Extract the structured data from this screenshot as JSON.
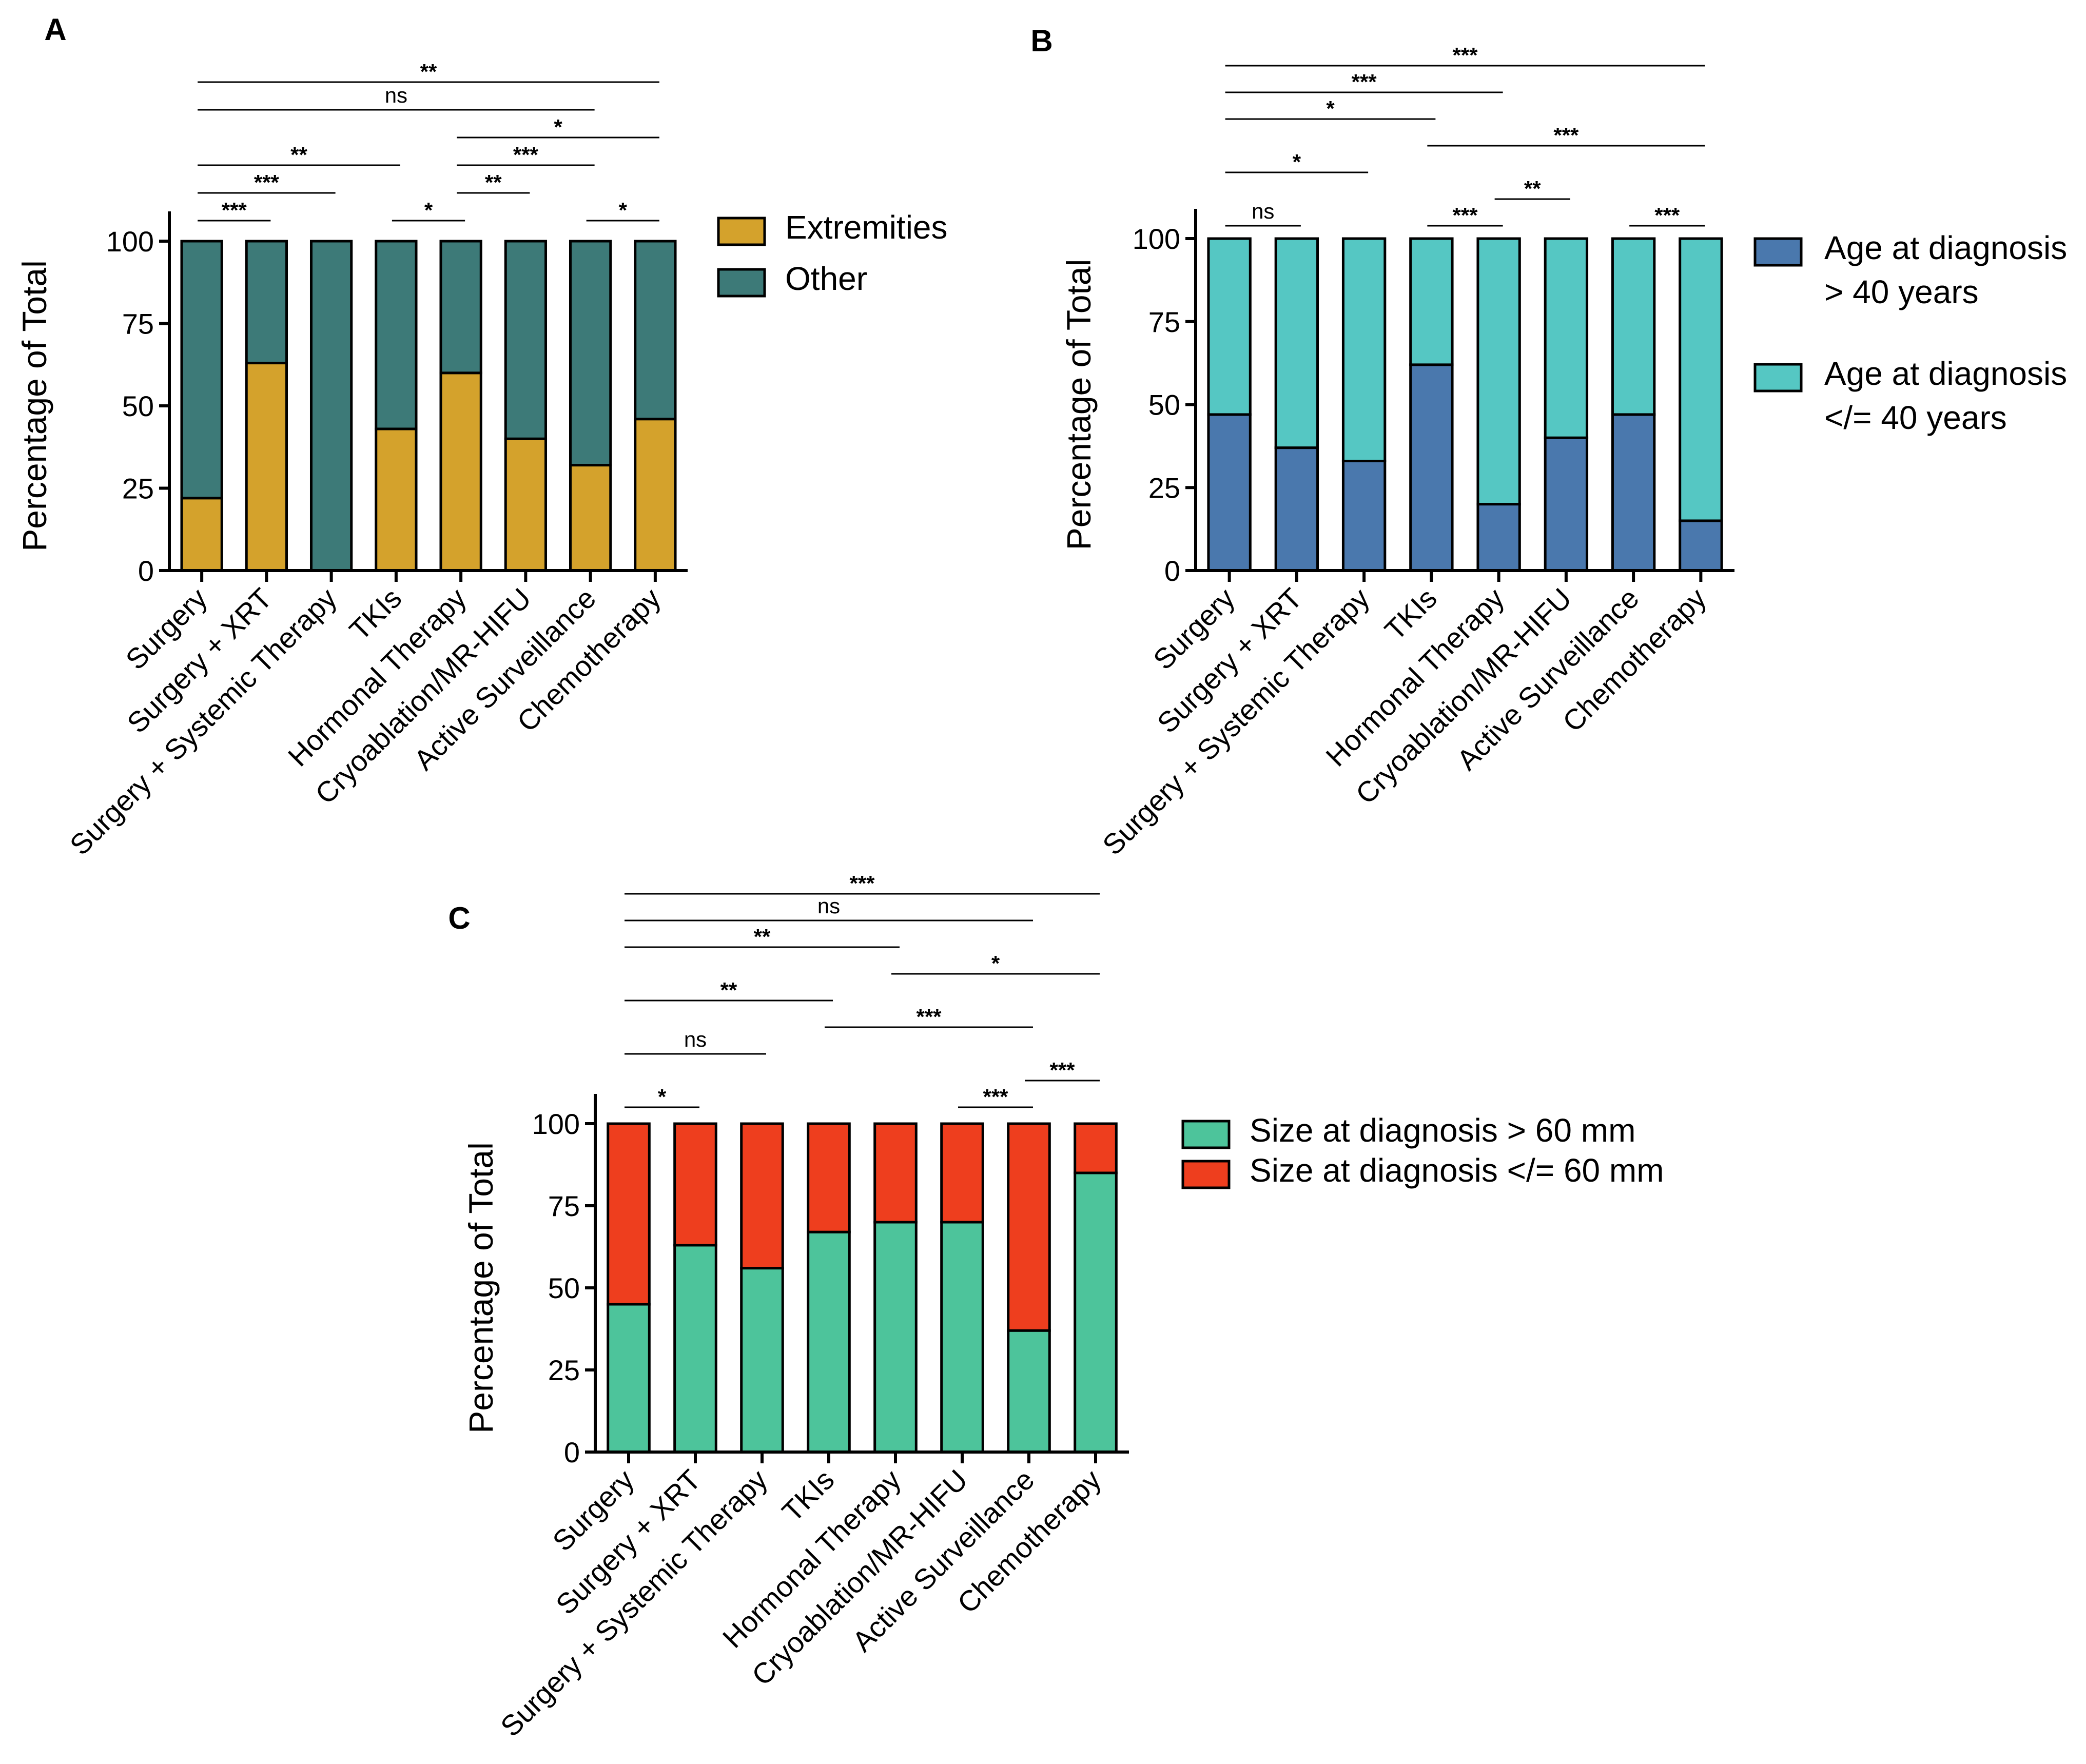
{
  "chart_data": [
    {
      "panel": "A",
      "type": "bar",
      "stacked": true,
      "categories": [
        "Surgery",
        "Surgery + XRT",
        "Surgery + Systemic Therapy",
        "TKIs",
        "Hormonal Therapy",
        "Cryoablation/MR-HIFU",
        "Active Surveillance",
        "Chemotherapy"
      ],
      "ylabel": "Percentage of Total",
      "ylim": [
        0,
        100
      ],
      "yticks": [
        "0",
        "25",
        "50",
        "75",
        "100"
      ],
      "series": [
        {
          "name": "Extremities",
          "color": "#d4a22c",
          "values": [
            22,
            63,
            0,
            43,
            60,
            40,
            32,
            46
          ]
        },
        {
          "name": "Other",
          "color": "#3d7a78",
          "values": [
            78,
            37,
            100,
            57,
            40,
            60,
            68,
            54
          ]
        }
      ],
      "legend": {
        "position": "right",
        "entries": [
          {
            "text": "Extremities",
            "color": "#d4a22c"
          },
          {
            "text": "Other",
            "color": "#3d7a78"
          }
        ]
      },
      "significance": [
        {
          "from": 0,
          "to": 1,
          "level": 0,
          "label": "***"
        },
        {
          "from": 3,
          "to": 4,
          "level": 0,
          "label": "*"
        },
        {
          "from": 6,
          "to": 7,
          "level": 0,
          "label": "*"
        },
        {
          "from": 0,
          "to": 2,
          "level": 1,
          "label": "***"
        },
        {
          "from": 4,
          "to": 5,
          "level": 1,
          "label": "**"
        },
        {
          "from": 0,
          "to": 3,
          "level": 2,
          "label": "**"
        },
        {
          "from": 4,
          "to": 6,
          "level": 2,
          "label": "***"
        },
        {
          "from": 4,
          "to": 7,
          "level": 3,
          "label": "*"
        },
        {
          "from": 0,
          "to": 6,
          "level": 4,
          "label": "ns"
        },
        {
          "from": 0,
          "to": 7,
          "level": 5,
          "label": "**"
        }
      ]
    },
    {
      "panel": "B",
      "type": "bar",
      "stacked": true,
      "categories": [
        "Surgery",
        "Surgery + XRT",
        "Surgery + Systemic Therapy",
        "TKIs",
        "Hormonal Therapy",
        "Cryoablation/MR-HIFU",
        "Active Surveillance",
        "Chemotherapy"
      ],
      "ylabel": "Percentage of Total",
      "ylim": [
        0,
        100
      ],
      "yticks": [
        "0",
        "25",
        "50",
        "75",
        "100"
      ],
      "series": [
        {
          "name": "Age at diagnosis > 40 years",
          "color": "#4a78ad",
          "values": [
            47,
            37,
            33,
            62,
            20,
            40,
            47,
            15
          ]
        },
        {
          "name": "Age at diagnosis </= 40 years",
          "color": "#55c7c3",
          "values": [
            53,
            63,
            67,
            38,
            80,
            60,
            53,
            85
          ]
        }
      ],
      "legend": {
        "position": "right",
        "entries": [
          {
            "line1": "Age at diagnosis",
            "line2": "> 40 years",
            "color": "#4a78ad"
          },
          {
            "line1": "Age at diagnosis",
            "line2": "</= 40 years",
            "color": "#55c7c3"
          }
        ]
      },
      "significance": [
        {
          "from": 0,
          "to": 1,
          "level": 0,
          "label": "ns"
        },
        {
          "from": 3,
          "to": 4,
          "level": 0,
          "label": "***"
        },
        {
          "from": 6,
          "to": 7,
          "level": 0,
          "label": "***"
        },
        {
          "from": 4,
          "to": 5,
          "level": 1,
          "label": "**"
        },
        {
          "from": 0,
          "to": 2,
          "level": 2,
          "label": "*"
        },
        {
          "from": 3,
          "to": 7,
          "level": 3,
          "label": "***"
        },
        {
          "from": 0,
          "to": 3,
          "level": 4,
          "label": "*"
        },
        {
          "from": 0,
          "to": 4,
          "level": 5,
          "label": "***"
        },
        {
          "from": 0,
          "to": 7,
          "level": 6,
          "label": "***"
        }
      ]
    },
    {
      "panel": "C",
      "type": "bar",
      "stacked": true,
      "categories": [
        "Surgery",
        "Surgery + XRT",
        "Surgery + Systemic Therapy",
        "TKIs",
        "Hormonal Therapy",
        "Cryoablation/MR-HIFU",
        "Active Surveillance",
        "Chemotherapy"
      ],
      "ylabel": "Percentage of Total",
      "ylim": [
        0,
        100
      ],
      "yticks": [
        "0",
        "25",
        "50",
        "75",
        "100"
      ],
      "series": [
        {
          "name": "Size at diagnosis > 60 mm",
          "color": "#4dc49b",
          "values": [
            45,
            63,
            56,
            67,
            70,
            70,
            37,
            85
          ]
        },
        {
          "name": "Size at diagnosis </= 60 mm",
          "color": "#ee3e1e",
          "values": [
            55,
            37,
            44,
            33,
            30,
            30,
            63,
            15
          ]
        }
      ],
      "legend": {
        "position": "right",
        "entries": [
          {
            "text": "Size at diagnosis > 60 mm",
            "color": "#4dc49b"
          },
          {
            "text": "Size at diagnosis </= 60 mm",
            "color": "#ee3e1e"
          }
        ]
      },
      "significance": [
        {
          "from": 0,
          "to": 1,
          "level": 0,
          "label": "*"
        },
        {
          "from": 5,
          "to": 6,
          "level": 0,
          "label": "***"
        },
        {
          "from": 6,
          "to": 7,
          "level": 1,
          "label": "***"
        },
        {
          "from": 0,
          "to": 2,
          "level": 2,
          "label": "ns"
        },
        {
          "from": 3,
          "to": 6,
          "level": 3,
          "label": "***"
        },
        {
          "from": 0,
          "to": 3,
          "level": 4,
          "label": "**"
        },
        {
          "from": 4,
          "to": 7,
          "level": 5,
          "label": "*"
        },
        {
          "from": 0,
          "to": 4,
          "level": 6,
          "label": "**"
        },
        {
          "from": 0,
          "to": 6,
          "level": 7,
          "label": "ns"
        },
        {
          "from": 0,
          "to": 7,
          "level": 8,
          "label": "***"
        }
      ]
    }
  ]
}
